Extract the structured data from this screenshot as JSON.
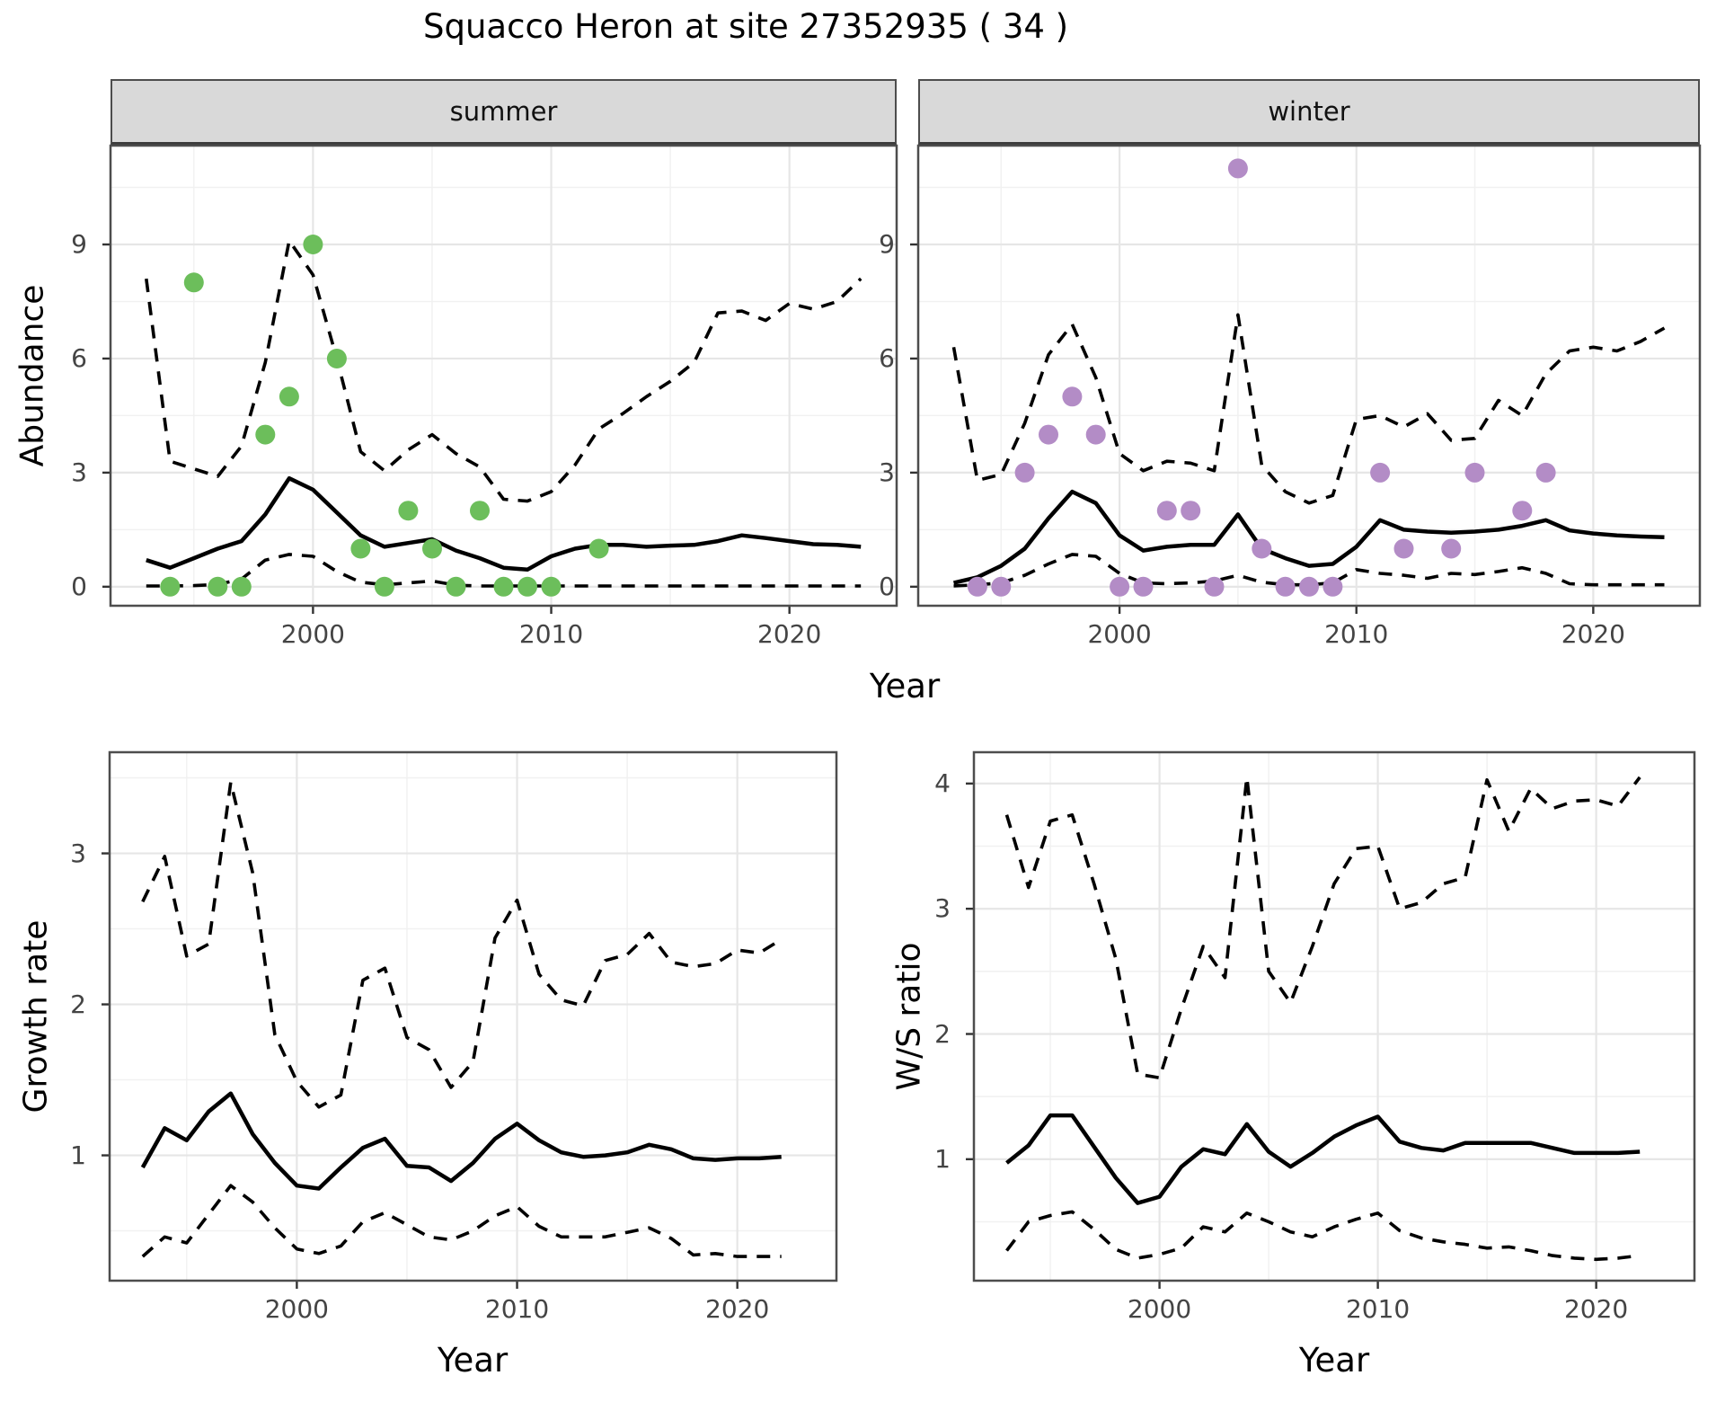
{
  "title": "Squacco Heron at site 27352935 ( 34 )",
  "facets": {
    "summer": "summer",
    "winter": "winter"
  },
  "axis_labels": {
    "abundance": "Abundance",
    "year": "Year",
    "growth_rate": "Growth rate",
    "ws_ratio": "W/S ratio"
  },
  "colors": {
    "summer_point": "#6CBE5B",
    "winter_point": "#B38CC6",
    "line": "#000000",
    "grid_major": "#E6E6E6",
    "grid_minor": "#F1F1F1",
    "strip_bg": "#D9D9D9",
    "panel_border": "#4D4D4D",
    "tick_text": "#444444"
  },
  "chart_data": [
    {
      "id": "summer",
      "type": "line",
      "title": "summer",
      "xlabel": "Year",
      "ylabel": "Abundance",
      "xlim": [
        1991.5,
        2024.5
      ],
      "ylim": [
        -0.5,
        11.6
      ],
      "x_ticks": [
        2000,
        2010,
        2020
      ],
      "x_minor": [
        1995,
        2005,
        2015
      ],
      "y_ticks": [
        0,
        3,
        6,
        9
      ],
      "y_minor": [
        1.5,
        4.5,
        7.5,
        10.5
      ],
      "grid": true,
      "legend": "none",
      "years": [
        1993,
        1994,
        1995,
        1996,
        1997,
        1998,
        1999,
        2000,
        2001,
        2002,
        2003,
        2004,
        2005,
        2006,
        2007,
        2008,
        2009,
        2010,
        2011,
        2012,
        2013,
        2014,
        2015,
        2016,
        2017,
        2018,
        2019,
        2020,
        2021,
        2022,
        2023
      ],
      "series": [
        {
          "name": "median",
          "style": "solid",
          "values": [
            0.7,
            0.5,
            0.75,
            1.0,
            1.2,
            1.9,
            2.85,
            2.55,
            1.95,
            1.35,
            1.05,
            1.15,
            1.25,
            0.95,
            0.75,
            0.5,
            0.45,
            0.8,
            1.0,
            1.1,
            1.1,
            1.05,
            1.08,
            1.1,
            1.2,
            1.35,
            1.28,
            1.2,
            1.12,
            1.1,
            1.05
          ]
        },
        {
          "name": "upper",
          "style": "dashed",
          "values": [
            8.1,
            3.3,
            3.1,
            2.9,
            3.7,
            5.9,
            9.1,
            8.2,
            6.0,
            3.55,
            3.05,
            3.6,
            4.0,
            3.5,
            3.15,
            2.3,
            2.25,
            2.5,
            3.2,
            4.15,
            4.55,
            5.0,
            5.4,
            5.9,
            7.2,
            7.25,
            7.0,
            7.45,
            7.3,
            7.5,
            8.1
          ]
        },
        {
          "name": "lower",
          "style": "dashed",
          "values": [
            0.02,
            0.02,
            0.03,
            0.06,
            0.2,
            0.7,
            0.85,
            0.8,
            0.4,
            0.12,
            0.05,
            0.1,
            0.15,
            0.04,
            0.02,
            0.02,
            0.02,
            0.02,
            0.02,
            0.02,
            0.02,
            0.02,
            0.02,
            0.02,
            0.02,
            0.02,
            0.02,
            0.02,
            0.02,
            0.02,
            0.02
          ]
        }
      ],
      "observations": {
        "color_key": "summer_point",
        "years": [
          1994,
          1995,
          1996,
          1997,
          1998,
          1999,
          2000,
          2001,
          2002,
          2003,
          2004,
          2005,
          2006,
          2007,
          2008,
          2009,
          2010,
          2012
        ],
        "values": [
          0,
          8,
          0,
          0,
          4,
          5,
          9,
          6,
          1,
          0,
          2,
          1,
          0,
          2,
          0,
          0,
          0,
          1
        ]
      }
    },
    {
      "id": "winter",
      "type": "line",
      "title": "winter",
      "xlabel": "Year",
      "ylabel": "Abundance",
      "xlim": [
        1991.5,
        2024.5
      ],
      "ylim": [
        -0.5,
        11.6
      ],
      "x_ticks": [
        2000,
        2010,
        2020
      ],
      "x_minor": [
        1995,
        2005,
        2015
      ],
      "y_ticks": [
        0,
        3,
        6,
        9
      ],
      "y_minor": [
        1.5,
        4.5,
        7.5,
        10.5
      ],
      "grid": true,
      "legend": "none",
      "years": [
        1993,
        1994,
        1995,
        1996,
        1997,
        1998,
        1999,
        2000,
        2001,
        2002,
        2003,
        2004,
        2005,
        2006,
        2007,
        2008,
        2009,
        2010,
        2011,
        2012,
        2013,
        2014,
        2015,
        2016,
        2017,
        2018,
        2019,
        2020,
        2021,
        2022,
        2023
      ],
      "series": [
        {
          "name": "median",
          "style": "solid",
          "values": [
            0.1,
            0.25,
            0.55,
            1.0,
            1.8,
            2.5,
            2.2,
            1.35,
            0.95,
            1.05,
            1.1,
            1.1,
            1.9,
            1.0,
            0.75,
            0.55,
            0.6,
            1.05,
            1.75,
            1.5,
            1.45,
            1.42,
            1.45,
            1.5,
            1.6,
            1.75,
            1.48,
            1.4,
            1.35,
            1.32,
            1.3
          ]
        },
        {
          "name": "upper",
          "style": "dashed",
          "values": [
            6.3,
            2.8,
            2.95,
            4.3,
            6.1,
            6.9,
            5.5,
            3.5,
            3.05,
            3.3,
            3.25,
            3.05,
            7.15,
            3.2,
            2.5,
            2.2,
            2.4,
            4.4,
            4.5,
            4.2,
            4.55,
            3.85,
            3.9,
            4.9,
            4.5,
            5.6,
            6.2,
            6.3,
            6.2,
            6.45,
            6.8
          ]
        },
        {
          "name": "lower",
          "style": "dashed",
          "values": [
            0.02,
            0.05,
            0.1,
            0.3,
            0.6,
            0.85,
            0.8,
            0.35,
            0.1,
            0.08,
            0.1,
            0.15,
            0.3,
            0.12,
            0.05,
            0.05,
            0.1,
            0.45,
            0.35,
            0.3,
            0.22,
            0.35,
            0.32,
            0.4,
            0.5,
            0.35,
            0.08,
            0.05,
            0.05,
            0.05,
            0.05
          ]
        }
      ],
      "observations": {
        "color_key": "winter_point",
        "years": [
          1994,
          1995,
          1996,
          1997,
          1998,
          1999,
          2000,
          2001,
          2002,
          2003,
          2004,
          2005,
          2006,
          2007,
          2008,
          2009,
          2011,
          2012,
          2014,
          2015,
          2017,
          2018
        ],
        "values": [
          0,
          0,
          3,
          4,
          5,
          4,
          0,
          0,
          2,
          2,
          0,
          11,
          1,
          0,
          0,
          0,
          3,
          1,
          1,
          3,
          2,
          3
        ]
      }
    },
    {
      "id": "growth",
      "type": "line",
      "title": "",
      "xlabel": "Year",
      "ylabel": "Growth rate",
      "xlim": [
        1991.5,
        2024.5
      ],
      "ylim": [
        0.17,
        3.67
      ],
      "x_ticks": [
        2000,
        2010,
        2020
      ],
      "x_minor": [
        1995,
        2005,
        2015
      ],
      "y_ticks": [
        1,
        2,
        3
      ],
      "y_minor": [
        0.5,
        1.5,
        2.5,
        3.5
      ],
      "grid": true,
      "legend": "none",
      "years": [
        1993,
        1994,
        1995,
        1996,
        1997,
        1998,
        1999,
        2000,
        2001,
        2002,
        2003,
        2004,
        2005,
        2006,
        2007,
        2008,
        2009,
        2010,
        2011,
        2012,
        2013,
        2014,
        2015,
        2016,
        2017,
        2018,
        2019,
        2020,
        2021,
        2022
      ],
      "series": [
        {
          "name": "median",
          "style": "solid",
          "values": [
            0.92,
            1.18,
            1.1,
            1.29,
            1.41,
            1.14,
            0.95,
            0.8,
            0.78,
            0.92,
            1.05,
            1.11,
            0.93,
            0.92,
            0.83,
            0.95,
            1.11,
            1.21,
            1.1,
            1.02,
            0.99,
            1.0,
            1.02,
            1.07,
            1.04,
            0.98,
            0.97,
            0.98,
            0.98,
            0.99
          ]
        },
        {
          "name": "upper",
          "style": "dashed",
          "values": [
            2.68,
            2.98,
            2.32,
            2.4,
            3.47,
            2.87,
            1.8,
            1.49,
            1.32,
            1.4,
            2.16,
            2.24,
            1.78,
            1.7,
            1.45,
            1.62,
            2.44,
            2.69,
            2.2,
            2.03,
            1.99,
            2.29,
            2.33,
            2.47,
            2.28,
            2.25,
            2.27,
            2.36,
            2.34,
            2.43
          ]
        },
        {
          "name": "lower",
          "style": "dashed",
          "values": [
            0.33,
            0.46,
            0.42,
            0.61,
            0.8,
            0.69,
            0.52,
            0.38,
            0.35,
            0.4,
            0.56,
            0.62,
            0.54,
            0.46,
            0.44,
            0.5,
            0.6,
            0.66,
            0.53,
            0.46,
            0.46,
            0.46,
            0.49,
            0.52,
            0.45,
            0.34,
            0.35,
            0.33,
            0.33,
            0.33
          ]
        }
      ]
    },
    {
      "id": "ws",
      "type": "line",
      "title": "",
      "xlabel": "Year",
      "ylabel": "W/S ratio",
      "xlim": [
        1991.5,
        2024.5
      ],
      "ylim": [
        0.03,
        4.25
      ],
      "x_ticks": [
        2000,
        2010,
        2020
      ],
      "x_minor": [
        1995,
        2005,
        2015
      ],
      "y_ticks": [
        1,
        2,
        3,
        4
      ],
      "y_minor": [
        0.5,
        1.5,
        2.5,
        3.5
      ],
      "grid": true,
      "legend": "none",
      "years": [
        1993,
        1994,
        1995,
        1996,
        1997,
        1998,
        1999,
        2000,
        2001,
        2002,
        2003,
        2004,
        2005,
        2006,
        2007,
        2008,
        2009,
        2010,
        2011,
        2012,
        2013,
        2014,
        2015,
        2016,
        2017,
        2018,
        2019,
        2020,
        2021,
        2022
      ],
      "series": [
        {
          "name": "median",
          "style": "solid",
          "values": [
            0.97,
            1.11,
            1.35,
            1.35,
            1.1,
            0.85,
            0.65,
            0.7,
            0.94,
            1.08,
            1.04,
            1.28,
            1.06,
            0.94,
            1.05,
            1.18,
            1.27,
            1.34,
            1.14,
            1.09,
            1.07,
            1.13,
            1.13,
            1.13,
            1.13,
            1.09,
            1.05,
            1.05,
            1.05,
            1.06
          ]
        },
        {
          "name": "upper",
          "style": "dashed",
          "values": [
            3.75,
            3.17,
            3.7,
            3.75,
            3.2,
            2.6,
            1.68,
            1.65,
            2.2,
            2.7,
            2.45,
            4.05,
            2.5,
            2.25,
            2.7,
            3.2,
            3.48,
            3.5,
            3.0,
            3.05,
            3.2,
            3.25,
            4.03,
            3.62,
            3.96,
            3.8,
            3.86,
            3.87,
            3.82,
            4.05
          ]
        },
        {
          "name": "lower",
          "style": "dashed",
          "values": [
            0.27,
            0.5,
            0.55,
            0.58,
            0.44,
            0.28,
            0.21,
            0.24,
            0.29,
            0.46,
            0.42,
            0.57,
            0.5,
            0.42,
            0.38,
            0.46,
            0.52,
            0.57,
            0.43,
            0.37,
            0.34,
            0.32,
            0.29,
            0.3,
            0.27,
            0.23,
            0.21,
            0.2,
            0.21,
            0.23
          ]
        }
      ]
    }
  ]
}
